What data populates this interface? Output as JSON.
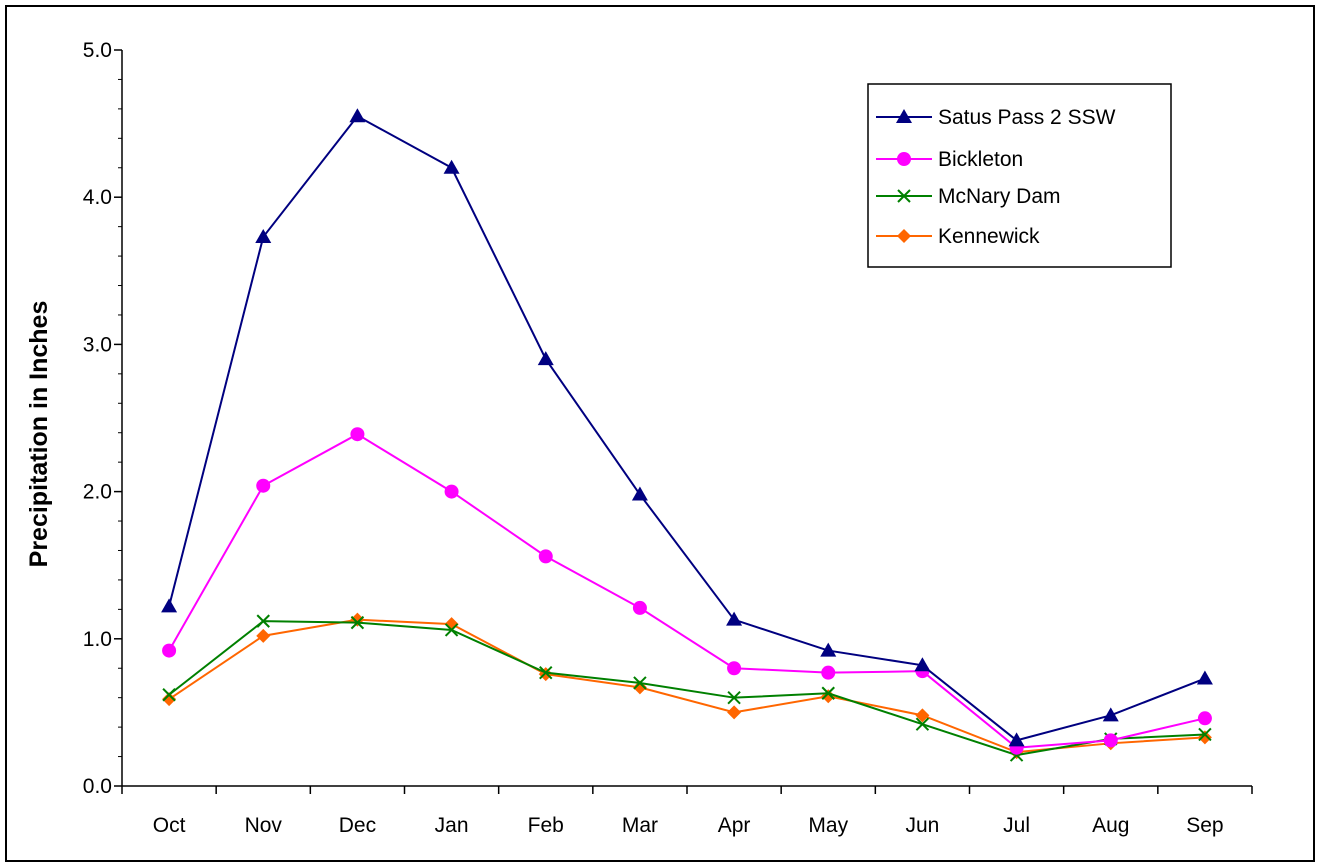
{
  "chart_data": {
    "type": "line",
    "title": "",
    "xlabel": "",
    "ylabel": "Precipitation in Inches",
    "categories": [
      "Oct",
      "Nov",
      "Dec",
      "Jan",
      "Feb",
      "Mar",
      "Apr",
      "May",
      "Jun",
      "Jul",
      "Aug",
      "Sep"
    ],
    "ylim": [
      0,
      5
    ],
    "yticks": [
      "0.0",
      "1.0",
      "2.0",
      "3.0",
      "4.0",
      "5.0"
    ],
    "grid": false,
    "legend_position": "top-right",
    "series": [
      {
        "name": "Satus Pass 2 SSW",
        "color": "#000080",
        "marker": "triangle",
        "values": [
          1.22,
          3.73,
          4.55,
          4.2,
          2.9,
          1.98,
          1.13,
          0.92,
          0.82,
          0.31,
          0.48,
          0.73
        ]
      },
      {
        "name": "Bickleton",
        "color": "#ff00ff",
        "marker": "circle",
        "values": [
          0.92,
          2.04,
          2.39,
          2.0,
          1.56,
          1.21,
          0.8,
          0.77,
          0.78,
          0.26,
          0.31,
          0.46
        ]
      },
      {
        "name": "McNary Dam",
        "color": "#008000",
        "marker": "x",
        "values": [
          0.62,
          1.12,
          1.11,
          1.06,
          0.77,
          0.7,
          0.6,
          0.63,
          0.42,
          0.21,
          0.32,
          0.35
        ]
      },
      {
        "name": "Kennewick",
        "color": "#ff6600",
        "marker": "diamond",
        "values": [
          0.59,
          1.02,
          1.13,
          1.1,
          0.76,
          0.67,
          0.5,
          0.61,
          0.48,
          0.23,
          0.29,
          0.33
        ]
      }
    ]
  }
}
